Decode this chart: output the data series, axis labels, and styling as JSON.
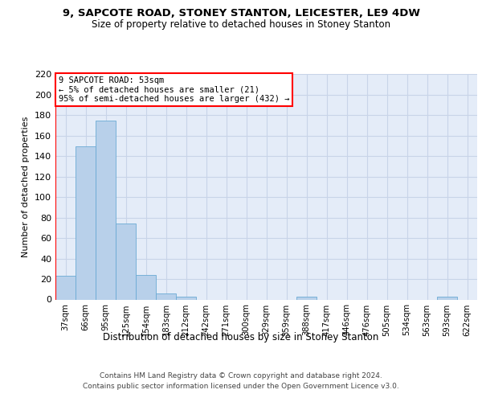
{
  "title1": "9, SAPCOTE ROAD, STONEY STANTON, LEICESTER, LE9 4DW",
  "title2": "Size of property relative to detached houses in Stoney Stanton",
  "xlabel": "Distribution of detached houses by size in Stoney Stanton",
  "ylabel": "Number of detached properties",
  "footer_line1": "Contains HM Land Registry data © Crown copyright and database right 2024.",
  "footer_line2": "Contains public sector information licensed under the Open Government Licence v3.0.",
  "bin_labels": [
    "37sqm",
    "66sqm",
    "95sqm",
    "125sqm",
    "154sqm",
    "183sqm",
    "212sqm",
    "242sqm",
    "271sqm",
    "300sqm",
    "329sqm",
    "359sqm",
    "388sqm",
    "417sqm",
    "446sqm",
    "476sqm",
    "505sqm",
    "534sqm",
    "563sqm",
    "593sqm",
    "622sqm"
  ],
  "bar_values": [
    23,
    150,
    175,
    74,
    24,
    6,
    3,
    0,
    0,
    0,
    0,
    0,
    3,
    0,
    0,
    0,
    0,
    0,
    0,
    3,
    0
  ],
  "bar_color": "#b8d0ea",
  "bar_edge_color": "#6aaad4",
  "grid_color": "#c8d4e8",
  "bg_color": "#e4ecf8",
  "annotation_line1": "9 SAPCOTE ROAD: 53sqm",
  "annotation_line2": "← 5% of detached houses are smaller (21)",
  "annotation_line3": "95% of semi-detached houses are larger (432) →",
  "vline_color": "red",
  "ylim_max": 220,
  "yticks": [
    0,
    20,
    40,
    60,
    80,
    100,
    120,
    140,
    160,
    180,
    200,
    220
  ]
}
